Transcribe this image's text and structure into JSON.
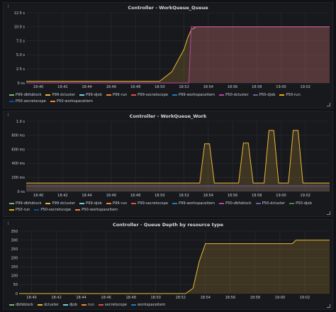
{
  "panels": [
    {
      "title": "Controller - WorkQueue_Queue",
      "yticks": [
        "0 ns",
        "2.5 s",
        "5.0 s",
        "7.5 s",
        "10.0 s",
        "12.5 s"
      ],
      "xticks": [
        "18:40",
        "18:42",
        "18:44",
        "18:46",
        "18:48",
        "18:50",
        "18:52",
        "18:54",
        "18:56",
        "18:58",
        "19:00",
        "19:02"
      ],
      "legend": [
        {
          "label": "P99-dbfsblock",
          "color": "#7eb26d"
        },
        {
          "label": "P99-dcluster",
          "color": "#eab839"
        },
        {
          "label": "P99-djob",
          "color": "#6ed0e0"
        },
        {
          "label": "P99-run",
          "color": "#ef843c"
        },
        {
          "label": "P99-secretscope",
          "color": "#e24d42"
        },
        {
          "label": "P99-workspaceitem",
          "color": "#1f78c1"
        },
        {
          "label": "P50-dcluster",
          "color": "#ba43a9"
        },
        {
          "label": "P50-djob",
          "color": "#705da0"
        },
        {
          "label": "P50-run",
          "color": "#e5ac0e"
        },
        {
          "label": "P50-secretscope",
          "color": "#0a50a1"
        },
        {
          "label": "P50-workspaceitem",
          "color": "#ef843c"
        }
      ]
    },
    {
      "title": "Controller - WorkQueue_Work",
      "yticks": [
        "0 ns",
        "200 ms",
        "400 ms",
        "600 ms",
        "800 ms",
        "1.0 s"
      ],
      "xticks": [
        "18:40",
        "18:42",
        "18:44",
        "18:46",
        "18:48",
        "18:50",
        "18:52",
        "18:54",
        "18:56",
        "18:58",
        "19:00",
        "19:02"
      ],
      "legend": [
        {
          "label": "P99-dbfsblock",
          "color": "#7eb26d"
        },
        {
          "label": "P99-dcluster",
          "color": "#eab839"
        },
        {
          "label": "P99-djob",
          "color": "#6ed0e0"
        },
        {
          "label": "P99-run",
          "color": "#ef843c"
        },
        {
          "label": "P99-secretscope",
          "color": "#e24d42"
        },
        {
          "label": "P99-workspaceitem",
          "color": "#1f78c1"
        },
        {
          "label": "P50-dbfsblock",
          "color": "#ba43a9"
        },
        {
          "label": "P50-dcluster",
          "color": "#705da0"
        },
        {
          "label": "P50-djob",
          "color": "#508642"
        },
        {
          "label": "P50-run",
          "color": "#e5ac0e"
        },
        {
          "label": "P50-secretscope",
          "color": "#0a50a1"
        },
        {
          "label": "P50-workspaceitem",
          "color": "#ef843c"
        }
      ]
    },
    {
      "title": "Controller - Queue Depth by resource type",
      "yticks": [
        "0",
        "50",
        "100",
        "150",
        "200",
        "250",
        "300",
        "350"
      ],
      "xticks": [
        "18:40",
        "18:42",
        "18:44",
        "18:46",
        "18:48",
        "18:50",
        "18:52",
        "18:54",
        "18:56",
        "18:58",
        "19:00",
        "19:02"
      ],
      "legend": [
        {
          "label": "dbfsblock",
          "color": "#7eb26d"
        },
        {
          "label": "dcluster",
          "color": "#eab839"
        },
        {
          "label": "djob",
          "color": "#6ed0e0"
        },
        {
          "label": "run",
          "color": "#ef843c"
        },
        {
          "label": "secretscope",
          "color": "#e24d42"
        },
        {
          "label": "workspaceitem",
          "color": "#1f78c1"
        }
      ]
    }
  ],
  "chart_data": [
    {
      "type": "line",
      "title": "Controller - WorkQueue_Queue",
      "ylim": [
        0,
        12.5
      ],
      "series": [
        {
          "name": "P99-dcluster",
          "color": "#eab839",
          "x": [
            "18:39",
            "18:50",
            "18:51",
            "18:51.5",
            "18:52",
            "18:52.3",
            "18:52.6",
            "18:53",
            "18:53.4",
            "19:04"
          ],
          "values": [
            0.3,
            0.3,
            2.0,
            4.0,
            6.0,
            8.0,
            9.5,
            10.0,
            10.0,
            10.0
          ]
        },
        {
          "name": "P50-dcluster",
          "color": "#ba43a9",
          "x": [
            "18:39",
            "18:52.4",
            "18:52.6",
            "18:53",
            "19:04"
          ],
          "values": [
            0,
            0,
            10.0,
            10.0,
            10.0
          ]
        }
      ]
    },
    {
      "type": "line",
      "title": "Controller - WorkQueue_Work",
      "ylim": [
        0,
        1000
      ],
      "series": [
        {
          "name": "P99-dcluster",
          "color": "#eab839",
          "x": [
            "18:39",
            "18:53.3",
            "18:53.7",
            "18:54.1",
            "18:54.5",
            "18:56.5",
            "18:56.9",
            "18:57.3",
            "18:57.7",
            "18:58.6",
            "18:59",
            "18:59.4",
            "18:59.8",
            "19:00.6",
            "19:01",
            "19:01.4",
            "19:01.8",
            "19:04"
          ],
          "values": [
            120,
            120,
            680,
            680,
            120,
            120,
            690,
            690,
            120,
            120,
            870,
            870,
            120,
            120,
            870,
            870,
            120,
            120
          ]
        },
        {
          "name": "P50-dcluster",
          "color": "#705da0",
          "x": [
            "18:39",
            "19:04"
          ],
          "values": [
            80,
            80
          ]
        }
      ]
    },
    {
      "type": "area",
      "title": "Controller - Queue Depth by resource type",
      "ylim": [
        0,
        350
      ],
      "series": [
        {
          "name": "dcluster",
          "color": "#eab839",
          "x": [
            "18:39",
            "18:52.4",
            "18:53",
            "18:53.5",
            "18:54",
            "19:01",
            "19:01.3",
            "19:04"
          ],
          "values": [
            0,
            0,
            30,
            180,
            280,
            280,
            300,
            300
          ]
        }
      ]
    }
  ]
}
